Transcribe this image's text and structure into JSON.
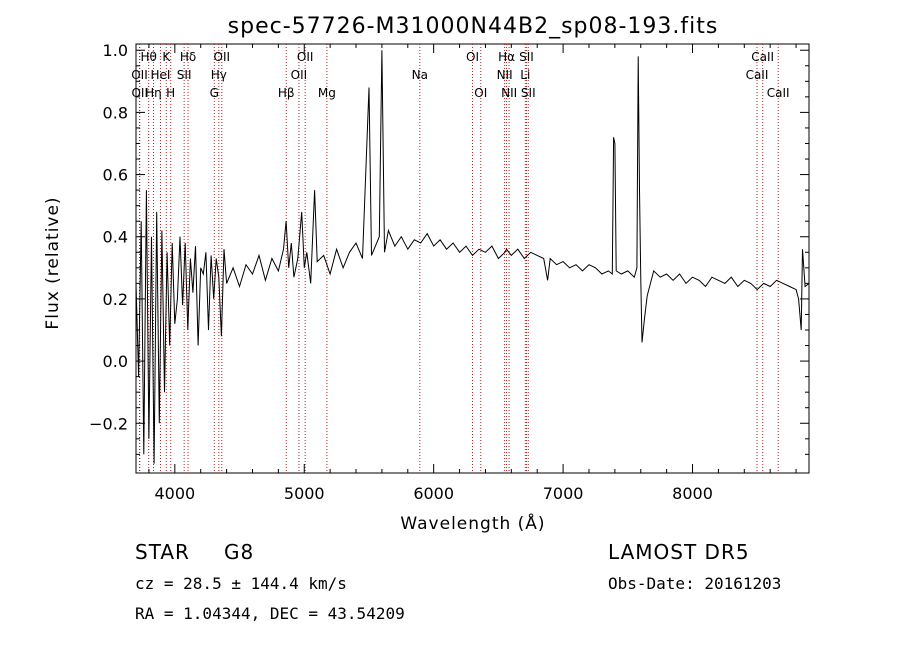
{
  "chart_data": {
    "type": "line",
    "title": "spec-57726-M31000N44B2_sp08-193.fits",
    "xlabel": "Wavelength (Å)",
    "ylabel": "Flux (relative)",
    "xlim": [
      3700,
      8900
    ],
    "ylim": [
      -0.36,
      1.02
    ],
    "xticks": [
      4000,
      5000,
      6000,
      7000,
      8000
    ],
    "xtick_labels": [
      "4000",
      "5000",
      "6000",
      "7000",
      "8000"
    ],
    "yticks": [
      -0.2,
      0.0,
      0.2,
      0.4,
      0.6,
      0.8,
      1.0
    ],
    "ytick_labels": [
      "−0.2",
      "0.0",
      "0.2",
      "0.4",
      "0.6",
      "0.8",
      "1.0"
    ],
    "grid": false,
    "line_color": "#000000",
    "marker_color": "#b22222",
    "line_markers": [
      {
        "label": "Hθ",
        "x": 3798,
        "row": 1
      },
      {
        "label": "K",
        "x": 3934,
        "row": 1
      },
      {
        "label": "Hδ",
        "x": 4102,
        "row": 1
      },
      {
        "label": "OII",
        "x": 4363,
        "row": 1
      },
      {
        "label": "OII",
        "x": 5007,
        "row": 1
      },
      {
        "label": "OI",
        "x": 6300,
        "row": 1
      },
      {
        "label": "Hα",
        "x": 6563,
        "row": 1
      },
      {
        "label": "SII",
        "x": 6717,
        "row": 1
      },
      {
        "label": "CaII",
        "x": 8542,
        "row": 1
      },
      {
        "label": "OII",
        "x": 3727,
        "row": 2
      },
      {
        "label": "HeI",
        "x": 3889,
        "row": 2
      },
      {
        "label": "SII",
        "x": 4072,
        "row": 2
      },
      {
        "label": "Hγ",
        "x": 4340,
        "row": 2
      },
      {
        "label": "OII",
        "x": 4959,
        "row": 2
      },
      {
        "label": "Na",
        "x": 5893,
        "row": 2
      },
      {
        "label": "NII",
        "x": 6548,
        "row": 2
      },
      {
        "label": "Li",
        "x": 6708,
        "row": 2
      },
      {
        "label": "CaII",
        "x": 8498,
        "row": 2
      },
      {
        "label": "OII",
        "x": 3729,
        "row": 3
      },
      {
        "label": "Hη",
        "x": 3835,
        "row": 3
      },
      {
        "label": "H",
        "x": 3968,
        "row": 3
      },
      {
        "label": "G",
        "x": 4305,
        "row": 3
      },
      {
        "label": "Hβ",
        "x": 4861,
        "row": 3
      },
      {
        "label": "Mg",
        "x": 5175,
        "row": 3
      },
      {
        "label": "OI",
        "x": 6364,
        "row": 3
      },
      {
        "label": "NII",
        "x": 6583,
        "row": 3
      },
      {
        "label": "SII",
        "x": 6731,
        "row": 3
      },
      {
        "label": "CaII",
        "x": 8662,
        "row": 3
      }
    ],
    "series": [
      {
        "x": [
          3700,
          3720,
          3740,
          3760,
          3780,
          3800,
          3820,
          3840,
          3860,
          3880,
          3900,
          3920,
          3940,
          3960,
          3980,
          4000,
          4020,
          4040,
          4060,
          4080,
          4100,
          4120,
          4140,
          4160,
          4180,
          4200,
          4220,
          4240,
          4260,
          4280,
          4300,
          4320,
          4340,
          4360,
          4380,
          4400,
          4450,
          4500,
          4550,
          4600,
          4650,
          4700,
          4750,
          4800,
          4840,
          4860,
          4880,
          4900,
          4920,
          4950,
          4980,
          5000,
          5020,
          5050,
          5080,
          5100,
          5150,
          5200,
          5250,
          5300,
          5350,
          5400,
          5450,
          5500,
          5520,
          5550,
          5580,
          5600,
          5620,
          5650,
          5700,
          5750,
          5800,
          5850,
          5900,
          5950,
          6000,
          6050,
          6100,
          6150,
          6200,
          6250,
          6300,
          6350,
          6400,
          6450,
          6500,
          6550,
          6563,
          6600,
          6650,
          6700,
          6750,
          6800,
          6850,
          6880,
          6900,
          6950,
          7000,
          7050,
          7100,
          7150,
          7200,
          7250,
          7300,
          7350,
          7380,
          7390,
          7400,
          7410,
          7450,
          7500,
          7550,
          7570,
          7580,
          7590,
          7600,
          7610,
          7630,
          7650,
          7700,
          7750,
          7800,
          7850,
          7900,
          7950,
          8000,
          8050,
          8100,
          8150,
          8200,
          8250,
          8300,
          8350,
          8400,
          8450,
          8500,
          8550,
          8600,
          8650,
          8700,
          8750,
          8800,
          8820,
          8840,
          8850,
          8870,
          8900
        ],
        "y": [
          0.25,
          -0.05,
          0.45,
          -0.3,
          0.55,
          -0.25,
          0.4,
          -0.33,
          0.48,
          -0.2,
          0.42,
          -0.1,
          0.35,
          0.05,
          0.38,
          0.12,
          0.2,
          0.4,
          0.18,
          0.38,
          0.1,
          0.33,
          0.22,
          0.37,
          0.05,
          0.3,
          0.28,
          0.35,
          0.1,
          0.34,
          0.2,
          0.33,
          0.27,
          0.08,
          0.36,
          0.25,
          0.3,
          0.24,
          0.31,
          0.28,
          0.34,
          0.26,
          0.33,
          0.29,
          0.36,
          0.45,
          0.3,
          0.38,
          0.27,
          0.33,
          0.48,
          0.3,
          0.35,
          0.25,
          0.55,
          0.32,
          0.34,
          0.28,
          0.36,
          0.3,
          0.35,
          0.38,
          0.33,
          0.88,
          0.34,
          0.37,
          0.4,
          1.0,
          0.35,
          0.42,
          0.37,
          0.4,
          0.36,
          0.39,
          0.38,
          0.41,
          0.37,
          0.39,
          0.36,
          0.38,
          0.35,
          0.37,
          0.34,
          0.36,
          0.35,
          0.37,
          0.33,
          0.35,
          0.36,
          0.34,
          0.36,
          0.33,
          0.35,
          0.34,
          0.33,
          0.26,
          0.33,
          0.31,
          0.32,
          0.3,
          0.31,
          0.29,
          0.31,
          0.3,
          0.28,
          0.29,
          0.28,
          0.72,
          0.7,
          0.29,
          0.28,
          0.29,
          0.27,
          0.3,
          0.98,
          0.55,
          0.26,
          0.06,
          0.14,
          0.21,
          0.29,
          0.27,
          0.28,
          0.26,
          0.28,
          0.25,
          0.27,
          0.26,
          0.24,
          0.27,
          0.26,
          0.25,
          0.27,
          0.24,
          0.26,
          0.25,
          0.23,
          0.25,
          0.24,
          0.26,
          0.25,
          0.24,
          0.23,
          0.2,
          0.1,
          0.36,
          0.24,
          0.25
        ]
      }
    ]
  },
  "info": {
    "class_label": "STAR",
    "subclass": "G8",
    "survey": "LAMOST  DR5",
    "cz": "cz = 28.5 ± 144.4 km/s",
    "obs_date": "Obs-Date: 20161203",
    "coords": "RA =    1.04344, DEC =  43.54209"
  }
}
